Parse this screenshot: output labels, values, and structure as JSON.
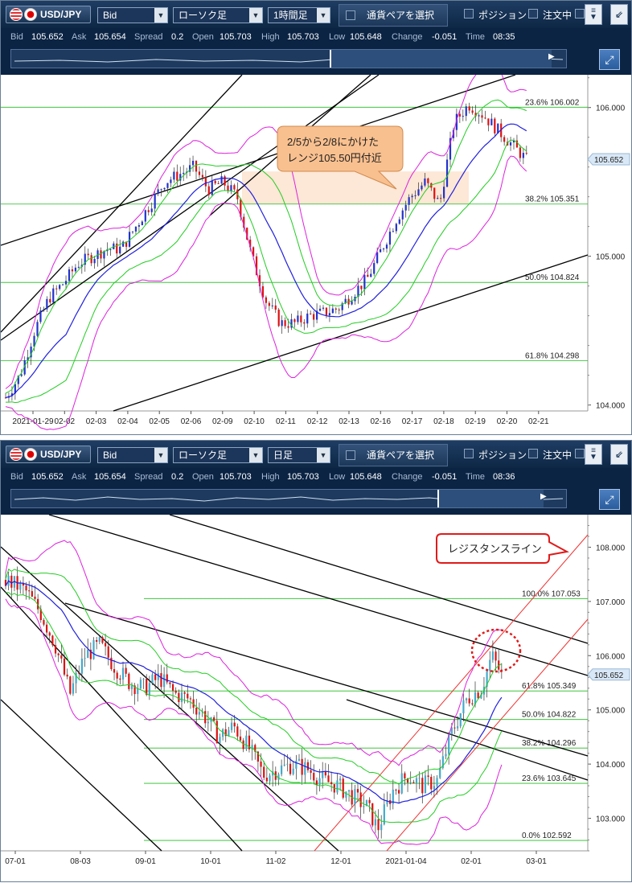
{
  "panels": [
    {
      "symbol": "USD/JPY",
      "price_type": "Bid",
      "chart_type": "ローソク足",
      "timeframe": "1時間足",
      "pair_button": "通貨ペアを選択",
      "position_label": "ポジション",
      "order_label": "注文中",
      "quote": {
        "bid_label": "Bid",
        "bid": "105.652",
        "ask_label": "Ask",
        "ask": "105.654",
        "spread_label": "Spread",
        "spread": "0.2",
        "open_label": "Open",
        "open": "105.703",
        "high_label": "High",
        "high": "105.703",
        "low_label": "Low",
        "low": "105.648",
        "change_label": "Change",
        "change": "-0.051",
        "time_label": "Time",
        "time": "08:35"
      },
      "scroll_thumb_fraction": [
        0.57,
        0.98
      ]
    },
    {
      "symbol": "USD/JPY",
      "price_type": "Bid",
      "chart_type": "ローソク足",
      "timeframe": "日足",
      "pair_button": "通貨ペアを選択",
      "position_label": "ポジション",
      "order_label": "注文中",
      "quote": {
        "bid_label": "Bid",
        "bid": "105.652",
        "ask_label": "Ask",
        "ask": "105.654",
        "spread_label": "Spread",
        "spread": "0.2",
        "open_label": "Open",
        "open": "105.703",
        "high_label": "High",
        "high": "105.703",
        "low_label": "Low",
        "low": "105.648",
        "change_label": "Change",
        "change": "-0.051",
        "time_label": "Time",
        "time": "08:36"
      },
      "scroll_thumb_fraction": [
        0.77,
        0.96
      ]
    }
  ],
  "chart_data": [
    {
      "type": "candlestick",
      "timeframe": "1時間足",
      "x_tick_labels": [
        "2021-01-29",
        "02-02",
        "02-03",
        "02-04",
        "02-05",
        "02-06",
        "02-09",
        "02-10",
        "02-11",
        "02-12",
        "02-13",
        "02-16",
        "02-17",
        "02-18",
        "02-19",
        "02-20",
        "02-21"
      ],
      "y_tick_labels": [
        "104.000",
        "105.000",
        "106.000"
      ],
      "ylim": [
        103.96,
        106.22
      ],
      "current_price": "105.652",
      "fib_levels": [
        {
          "label": "23.6%",
          "value": "106.002"
        },
        {
          "label": "38.2%",
          "value": "105.351"
        },
        {
          "label": "50.0%",
          "value": "104.824"
        },
        {
          "label": "61.8%",
          "value": "104.298"
        }
      ],
      "annotation": "2/5から2/8にかけた\nレンジ105.50円付近",
      "highlight_zone": [
        105.35,
        105.57
      ],
      "close_path": [
        [
          0,
          104.05
        ],
        [
          2,
          104.2
        ],
        [
          4,
          104.5
        ],
        [
          6,
          104.72
        ],
        [
          8,
          104.82
        ],
        [
          10,
          104.95
        ],
        [
          12,
          105.0
        ],
        [
          14,
          105.05
        ],
        [
          16,
          105.05
        ],
        [
          18,
          105.2
        ],
        [
          20,
          105.35
        ],
        [
          22,
          105.5
        ],
        [
          24,
          105.55
        ],
        [
          26,
          105.6
        ],
        [
          28,
          105.45
        ],
        [
          30,
          105.5
        ],
        [
          32,
          105.4
        ],
        [
          34,
          105.0
        ],
        [
          36,
          104.7
        ],
        [
          38,
          104.55
        ],
        [
          40,
          104.55
        ],
        [
          42,
          104.6
        ],
        [
          44,
          104.62
        ],
        [
          46,
          104.65
        ],
        [
          48,
          104.75
        ],
        [
          50,
          104.85
        ],
        [
          52,
          105.05
        ],
        [
          54,
          105.25
        ],
        [
          56,
          105.4
        ],
        [
          58,
          105.5
        ],
        [
          60,
          105.35
        ],
        [
          62,
          105.9
        ],
        [
          64,
          106.02
        ],
        [
          66,
          105.95
        ],
        [
          68,
          105.85
        ],
        [
          70,
          105.75
        ],
        [
          72,
          105.65
        ]
      ],
      "bollinger": {
        "middle_color": "#2020dd",
        "band1_color": "#22cc22",
        "band2_color": "#dd22dd"
      },
      "trend_lines_color": "#000000"
    },
    {
      "type": "candlestick",
      "timeframe": "日足",
      "x_tick_labels": [
        "07-01",
        "08-03",
        "09-01",
        "10-01",
        "11-02",
        "12-01",
        "2021-01-04",
        "02-01",
        "03-01"
      ],
      "y_tick_labels": [
        "103.000",
        "104.000",
        "105.000",
        "106.000",
        "107.000",
        "108.000"
      ],
      "ylim": [
        102.4,
        108.6
      ],
      "current_price": "105.652",
      "fib_levels": [
        {
          "label": "100.0%",
          "value": "107.053"
        },
        {
          "label": "61.8%",
          "value": "105.349"
        },
        {
          "label": "50.0%",
          "value": "104.822"
        },
        {
          "label": "38.2%",
          "value": "104.296"
        },
        {
          "label": "23.6%",
          "value": "103.645"
        },
        {
          "label": "0.0%",
          "value": "102.592"
        }
      ],
      "annotation": "レジスタンスライン",
      "close_path": [
        [
          0,
          107.4
        ],
        [
          8,
          107.2
        ],
        [
          14,
          106.8
        ],
        [
          20,
          106.2
        ],
        [
          26,
          105.3
        ],
        [
          32,
          106.0
        ],
        [
          38,
          106.2
        ],
        [
          44,
          105.8
        ],
        [
          50,
          105.5
        ],
        [
          56,
          105.4
        ],
        [
          62,
          105.6
        ],
        [
          68,
          105.3
        ],
        [
          74,
          105.2
        ],
        [
          80,
          104.9
        ],
        [
          86,
          104.5
        ],
        [
          92,
          104.7
        ],
        [
          98,
          104.3
        ],
        [
          104,
          103.8
        ],
        [
          110,
          103.9
        ],
        [
          116,
          104.0
        ],
        [
          122,
          103.9
        ],
        [
          128,
          103.7
        ],
        [
          134,
          103.6
        ],
        [
          140,
          103.4
        ],
        [
          146,
          103.2
        ],
        [
          150,
          102.8
        ],
        [
          156,
          103.5
        ],
        [
          162,
          103.8
        ],
        [
          168,
          103.6
        ],
        [
          174,
          103.7
        ],
        [
          180,
          104.6
        ],
        [
          186,
          105.2
        ],
        [
          192,
          105.4
        ],
        [
          196,
          106.0
        ],
        [
          200,
          105.65
        ]
      ],
      "bollinger": {
        "middle_color": "#2020dd",
        "band1_color": "#22cc22",
        "band2_color": "#dd22dd"
      },
      "trend_lines_color": "#000000",
      "channel_color": "#ee3333"
    }
  ]
}
